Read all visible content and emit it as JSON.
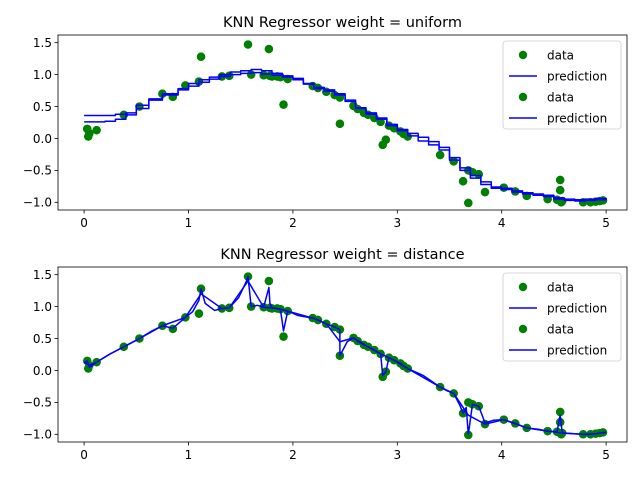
{
  "chart_data": [
    {
      "type": "scatter",
      "title": "KNN Regressor weight = uniform",
      "xlabel": "",
      "ylabel": "",
      "xlim": [
        -0.25,
        5.2
      ],
      "ylim": [
        -1.12,
        1.62
      ],
      "xticks": [
        0,
        1,
        2,
        3,
        4,
        5
      ],
      "yticks": [
        -1.0,
        -0.5,
        0.0,
        0.5,
        1.0,
        1.5
      ],
      "legend_position": "top-right",
      "legend": [
        {
          "label": "data",
          "kind": "marker",
          "color": "#008000"
        },
        {
          "label": "prediction",
          "kind": "line",
          "color": "#0000ff"
        },
        {
          "label": "data",
          "kind": "marker",
          "color": "#008000"
        },
        {
          "label": "prediction",
          "kind": "line",
          "color": "#0000ff"
        }
      ],
      "data_points": {
        "x": [
          0.03,
          0.04,
          0.05,
          0.12,
          0.38,
          0.53,
          0.75,
          0.85,
          0.97,
          1.1,
          1.12,
          1.32,
          1.39,
          1.57,
          1.6,
          1.72,
          1.77,
          1.78,
          1.8,
          1.85,
          1.88,
          1.91,
          1.95,
          2.19,
          2.24,
          2.32,
          2.4,
          2.45,
          2.45,
          2.58,
          2.62,
          2.68,
          2.72,
          2.78,
          2.84,
          2.86,
          2.89,
          2.92,
          2.97,
          3.03,
          3.06,
          3.1,
          3.41,
          3.54,
          3.63,
          3.68,
          3.68,
          3.72,
          3.78,
          3.84,
          4.02,
          4.13,
          4.24,
          4.44,
          4.53,
          4.56,
          4.56,
          4.57,
          4.58,
          4.78,
          4.85,
          4.9,
          4.94,
          4.97
        ],
        "y": [
          0.15,
          0.03,
          0.08,
          0.13,
          0.37,
          0.5,
          0.7,
          0.65,
          0.83,
          0.89,
          1.28,
          0.97,
          0.98,
          1.47,
          1.0,
          0.99,
          1.4,
          0.98,
          0.97,
          0.97,
          0.96,
          0.53,
          0.93,
          0.82,
          0.79,
          0.73,
          0.68,
          0.64,
          0.23,
          0.51,
          0.46,
          0.4,
          0.37,
          0.32,
          0.26,
          -0.1,
          -0.02,
          0.2,
          0.16,
          0.11,
          0.07,
          0.03,
          -0.26,
          -0.36,
          -0.67,
          -0.5,
          -1.01,
          -0.53,
          -0.56,
          -0.84,
          -0.77,
          -0.83,
          -0.9,
          -0.95,
          -0.96,
          -0.65,
          -0.81,
          -1.0,
          -0.98,
          -1.0,
          -1.0,
          -0.99,
          -0.98,
          -0.97
        ],
        "color": "#008000"
      },
      "prediction": {
        "x": [
          0.0,
          0.12,
          0.2,
          0.3,
          0.4,
          0.5,
          0.62,
          0.75,
          0.9,
          1.0,
          1.1,
          1.2,
          1.3,
          1.4,
          1.5,
          1.6,
          1.7,
          1.8,
          1.9,
          2.0,
          2.1,
          2.2,
          2.3,
          2.4,
          2.5,
          2.6,
          2.7,
          2.8,
          2.9,
          3.0,
          3.1,
          3.2,
          3.3,
          3.4,
          3.5,
          3.6,
          3.7,
          3.8,
          3.9,
          4.0,
          4.1,
          4.2,
          4.3,
          4.4,
          4.5,
          4.6,
          4.7,
          4.8,
          4.9,
          5.0
        ],
        "y": [
          0.36,
          0.36,
          0.36,
          0.38,
          0.4,
          0.52,
          0.62,
          0.7,
          0.78,
          0.86,
          0.92,
          0.96,
          1.0,
          1.04,
          1.06,
          1.08,
          1.06,
          1.02,
          0.98,
          0.94,
          0.86,
          0.8,
          0.76,
          0.7,
          0.6,
          0.48,
          0.4,
          0.32,
          0.22,
          0.14,
          0.08,
          0.02,
          -0.05,
          -0.14,
          -0.3,
          -0.46,
          -0.58,
          -0.68,
          -0.76,
          -0.78,
          -0.82,
          -0.85,
          -0.87,
          -0.89,
          -0.93,
          -0.95,
          -0.96,
          -0.95,
          -0.94,
          -0.93
        ],
        "color": "#0000ff",
        "step": true
      },
      "prediction2": {
        "x": [
          0.0,
          0.12,
          0.2,
          0.3,
          0.4,
          0.5,
          0.62,
          0.75,
          0.9,
          1.0,
          1.1,
          1.2,
          1.3,
          1.4,
          1.5,
          1.6,
          1.7,
          1.8,
          1.9,
          2.0,
          2.1,
          2.2,
          2.3,
          2.4,
          2.5,
          2.6,
          2.7,
          2.8,
          2.9,
          3.0,
          3.1,
          3.2,
          3.3,
          3.4,
          3.5,
          3.6,
          3.7,
          3.8,
          3.9,
          4.0,
          4.1,
          4.2,
          4.3,
          4.4,
          4.5,
          4.6,
          4.7,
          4.8,
          4.9,
          5.0
        ],
        "y": [
          0.26,
          0.26,
          0.27,
          0.3,
          0.37,
          0.47,
          0.6,
          0.68,
          0.76,
          0.82,
          0.88,
          0.93,
          0.97,
          1.0,
          1.02,
          1.03,
          1.01,
          0.99,
          0.96,
          0.92,
          0.85,
          0.78,
          0.74,
          0.68,
          0.58,
          0.47,
          0.38,
          0.3,
          0.2,
          0.12,
          0.04,
          -0.04,
          -0.1,
          -0.18,
          -0.34,
          -0.5,
          -0.62,
          -0.72,
          -0.78,
          -0.8,
          -0.84,
          -0.87,
          -0.89,
          -0.91,
          -0.95,
          -0.97,
          -0.98,
          -0.97,
          -0.96,
          -0.95
        ],
        "color": "#0000ff",
        "step": true
      }
    },
    {
      "type": "scatter",
      "title": "KNN Regressor weight = distance",
      "xlabel": "",
      "ylabel": "",
      "xlim": [
        -0.25,
        5.2
      ],
      "ylim": [
        -1.12,
        1.62
      ],
      "xticks": [
        0,
        1,
        2,
        3,
        4,
        5
      ],
      "yticks": [
        -1.0,
        -0.5,
        0.0,
        0.5,
        1.0,
        1.5
      ],
      "legend_position": "top-right",
      "legend": [
        {
          "label": "data",
          "kind": "marker",
          "color": "#008000"
        },
        {
          "label": "prediction",
          "kind": "line",
          "color": "#0000ff"
        },
        {
          "label": "data",
          "kind": "marker",
          "color": "#008000"
        },
        {
          "label": "prediction",
          "kind": "line",
          "color": "#0000ff"
        }
      ],
      "data_points": {
        "x": [
          0.03,
          0.04,
          0.05,
          0.12,
          0.38,
          0.53,
          0.75,
          0.85,
          0.97,
          1.1,
          1.12,
          1.32,
          1.39,
          1.57,
          1.6,
          1.72,
          1.77,
          1.78,
          1.8,
          1.85,
          1.88,
          1.91,
          1.95,
          2.19,
          2.24,
          2.32,
          2.4,
          2.45,
          2.45,
          2.58,
          2.62,
          2.68,
          2.72,
          2.78,
          2.84,
          2.86,
          2.89,
          2.92,
          2.97,
          3.03,
          3.06,
          3.1,
          3.41,
          3.54,
          3.63,
          3.68,
          3.68,
          3.72,
          3.78,
          3.84,
          4.02,
          4.13,
          4.24,
          4.44,
          4.53,
          4.56,
          4.56,
          4.57,
          4.58,
          4.78,
          4.85,
          4.9,
          4.94,
          4.97
        ],
        "y": [
          0.15,
          0.03,
          0.08,
          0.13,
          0.37,
          0.5,
          0.7,
          0.65,
          0.83,
          0.89,
          1.28,
          0.97,
          0.98,
          1.47,
          1.0,
          0.99,
          1.4,
          0.98,
          0.97,
          0.97,
          0.96,
          0.53,
          0.93,
          0.82,
          0.79,
          0.73,
          0.68,
          0.64,
          0.23,
          0.51,
          0.46,
          0.4,
          0.37,
          0.32,
          0.26,
          -0.1,
          -0.02,
          0.2,
          0.16,
          0.11,
          0.07,
          0.03,
          -0.26,
          -0.36,
          -0.67,
          -0.5,
          -1.01,
          -0.53,
          -0.56,
          -0.84,
          -0.77,
          -0.83,
          -0.9,
          -0.95,
          -0.96,
          -0.65,
          -0.81,
          -1.0,
          -0.98,
          -1.0,
          -1.0,
          -0.99,
          -0.98,
          -0.97
        ],
        "color": "#008000"
      },
      "prediction": {
        "x": [
          0.0,
          0.03,
          0.05,
          0.08,
          0.12,
          0.25,
          0.38,
          0.45,
          0.53,
          0.65,
          0.75,
          0.85,
          0.92,
          0.97,
          1.04,
          1.1,
          1.12,
          1.16,
          1.25,
          1.32,
          1.39,
          1.48,
          1.55,
          1.57,
          1.6,
          1.66,
          1.72,
          1.77,
          1.78,
          1.8,
          1.85,
          1.88,
          1.91,
          1.95,
          2.05,
          2.19,
          2.24,
          2.32,
          2.4,
          2.45,
          2.45,
          2.52,
          2.58,
          2.62,
          2.68,
          2.72,
          2.78,
          2.84,
          2.86,
          2.89,
          2.92,
          2.97,
          3.03,
          3.06,
          3.1,
          3.25,
          3.41,
          3.48,
          3.54,
          3.6,
          3.63,
          3.66,
          3.68,
          3.72,
          3.78,
          3.84,
          3.92,
          4.02,
          4.13,
          4.24,
          4.35,
          4.44,
          4.53,
          4.56,
          4.58,
          4.7,
          4.78,
          4.85,
          4.9,
          4.94,
          4.97,
          5.0
        ],
        "y": [
          0.12,
          0.15,
          0.05,
          0.08,
          0.13,
          0.26,
          0.37,
          0.43,
          0.5,
          0.62,
          0.7,
          0.66,
          0.76,
          0.83,
          0.92,
          1.1,
          1.28,
          1.05,
          0.94,
          0.97,
          0.98,
          1.14,
          1.38,
          1.47,
          1.0,
          1.02,
          0.99,
          1.3,
          1.05,
          0.98,
          0.97,
          0.96,
          0.62,
          0.93,
          0.86,
          0.82,
          0.79,
          0.73,
          0.68,
          0.64,
          0.23,
          0.45,
          0.51,
          0.46,
          0.4,
          0.37,
          0.32,
          0.26,
          -0.08,
          -0.02,
          0.2,
          0.16,
          0.11,
          0.07,
          0.03,
          -0.08,
          -0.26,
          -0.32,
          -0.36,
          -0.55,
          -0.67,
          -0.58,
          -1.0,
          -0.53,
          -0.56,
          -0.82,
          -0.78,
          -0.77,
          -0.83,
          -0.9,
          -0.92,
          -0.95,
          -0.96,
          -0.7,
          -0.98,
          -0.99,
          -1.0,
          -1.0,
          -0.99,
          -0.98,
          -0.97,
          -0.97
        ],
        "color": "#0000ff",
        "step": false
      },
      "prediction2": {
        "x": [
          0.0,
          0.05,
          0.12,
          0.25,
          0.38,
          0.53,
          0.75,
          0.97,
          1.12,
          1.32,
          1.39,
          1.57,
          1.72,
          1.85,
          1.95,
          2.19,
          2.32,
          2.45,
          2.58,
          2.72,
          2.84,
          2.97,
          3.1,
          3.41,
          3.54,
          3.68,
          3.84,
          4.02,
          4.24,
          4.44,
          4.58,
          4.78,
          4.9,
          5.0
        ],
        "y": [
          0.13,
          0.08,
          0.13,
          0.26,
          0.37,
          0.5,
          0.7,
          0.83,
          1.2,
          0.97,
          0.98,
          1.4,
          0.99,
          0.97,
          0.93,
          0.82,
          0.73,
          0.45,
          0.51,
          0.37,
          0.26,
          0.16,
          0.03,
          -0.26,
          -0.36,
          -0.7,
          -0.84,
          -0.77,
          -0.9,
          -0.95,
          -0.98,
          -1.0,
          -0.99,
          -0.97
        ],
        "color": "#0000ff",
        "step": false
      }
    }
  ]
}
